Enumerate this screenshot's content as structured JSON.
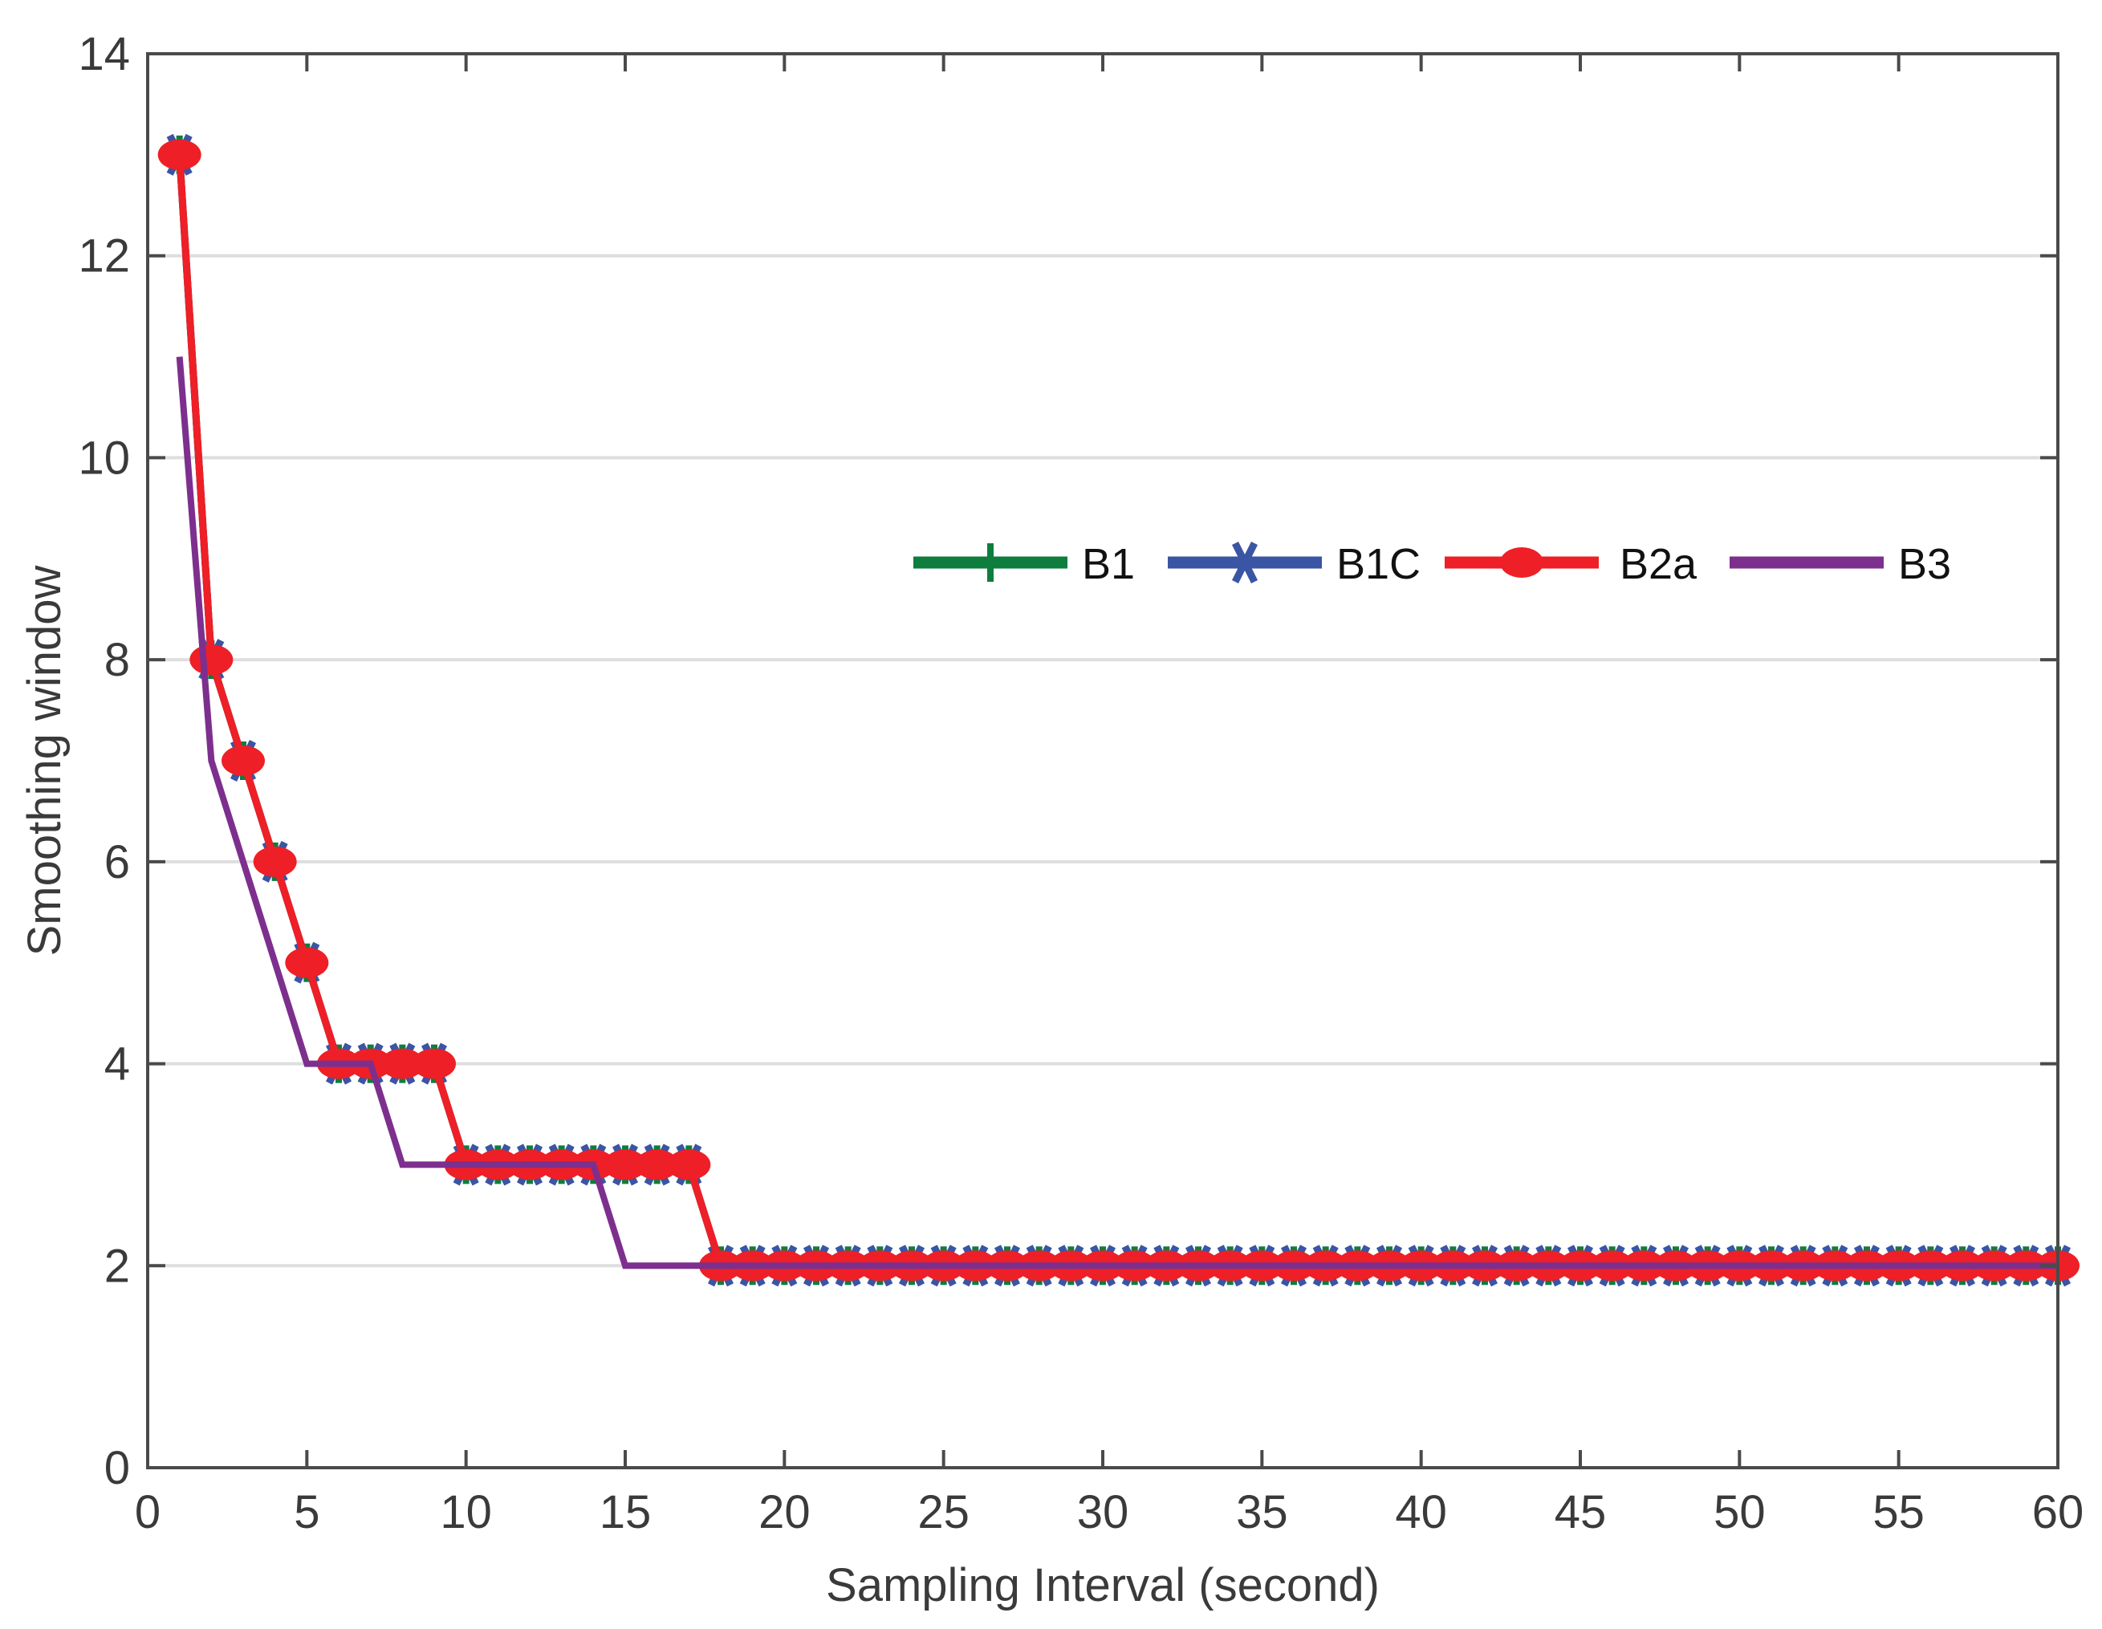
{
  "chart_data": {
    "type": "line",
    "title": "",
    "xlabel": "Sampling Interval (second)",
    "ylabel": "Smoothing window",
    "xlim": [
      0,
      60
    ],
    "ylim": [
      0,
      14
    ],
    "xticks": [
      "0",
      "5",
      "10",
      "15",
      "20",
      "25",
      "30",
      "35",
      "40",
      "45",
      "50",
      "55",
      "60"
    ],
    "yticks": [
      "0",
      "2",
      "4",
      "6",
      "8",
      "10",
      "12",
      "14"
    ],
    "grid": "horizontal",
    "legend_position": "upper-right (inside, single row)",
    "x": [
      1,
      2,
      3,
      4,
      5,
      6,
      7,
      8,
      9,
      10,
      11,
      12,
      13,
      14,
      15,
      16,
      17,
      18,
      19,
      20,
      21,
      22,
      23,
      24,
      25,
      26,
      27,
      28,
      29,
      30,
      31,
      32,
      33,
      34,
      35,
      36,
      37,
      38,
      39,
      40,
      41,
      42,
      43,
      44,
      45,
      46,
      47,
      48,
      49,
      50,
      51,
      52,
      53,
      54,
      55,
      56,
      57,
      58,
      59,
      60
    ],
    "series": [
      {
        "name": "B1",
        "color": "#0e7d3e",
        "marker": "plus",
        "values": [
          13,
          8,
          7,
          6,
          5,
          4,
          4,
          4,
          4,
          3,
          3,
          3,
          3,
          3,
          3,
          3,
          3,
          2,
          2,
          2,
          2,
          2,
          2,
          2,
          2,
          2,
          2,
          2,
          2,
          2,
          2,
          2,
          2,
          2,
          2,
          2,
          2,
          2,
          2,
          2,
          2,
          2,
          2,
          2,
          2,
          2,
          2,
          2,
          2,
          2,
          2,
          2,
          2,
          2,
          2,
          2,
          2,
          2,
          2,
          2
        ]
      },
      {
        "name": "B1C",
        "color": "#3a55a4",
        "marker": "x",
        "values": [
          13,
          8,
          7,
          6,
          5,
          4,
          4,
          4,
          4,
          3,
          3,
          3,
          3,
          3,
          3,
          3,
          3,
          2,
          2,
          2,
          2,
          2,
          2,
          2,
          2,
          2,
          2,
          2,
          2,
          2,
          2,
          2,
          2,
          2,
          2,
          2,
          2,
          2,
          2,
          2,
          2,
          2,
          2,
          2,
          2,
          2,
          2,
          2,
          2,
          2,
          2,
          2,
          2,
          2,
          2,
          2,
          2,
          2,
          2,
          2
        ]
      },
      {
        "name": "B2a",
        "color": "#ee1f26",
        "marker": "circle",
        "values": [
          13,
          8,
          7,
          6,
          5,
          4,
          4,
          4,
          4,
          3,
          3,
          3,
          3,
          3,
          3,
          3,
          3,
          2,
          2,
          2,
          2,
          2,
          2,
          2,
          2,
          2,
          2,
          2,
          2,
          2,
          2,
          2,
          2,
          2,
          2,
          2,
          2,
          2,
          2,
          2,
          2,
          2,
          2,
          2,
          2,
          2,
          2,
          2,
          2,
          2,
          2,
          2,
          2,
          2,
          2,
          2,
          2,
          2,
          2,
          2
        ]
      },
      {
        "name": "B3",
        "color": "#7d2f8e",
        "marker": "none",
        "values": [
          11,
          7,
          6,
          5,
          4,
          4,
          4,
          3,
          3,
          3,
          3,
          3,
          3,
          3,
          2,
          2,
          2,
          2,
          2,
          2,
          2,
          2,
          2,
          2,
          2,
          2,
          2,
          2,
          2,
          2,
          2,
          2,
          2,
          2,
          2,
          2,
          2,
          2,
          2,
          2,
          2,
          2,
          2,
          2,
          2,
          2,
          2,
          2,
          2,
          2,
          2,
          2,
          2,
          2,
          2,
          2,
          2,
          2,
          2,
          2
        ]
      }
    ]
  }
}
